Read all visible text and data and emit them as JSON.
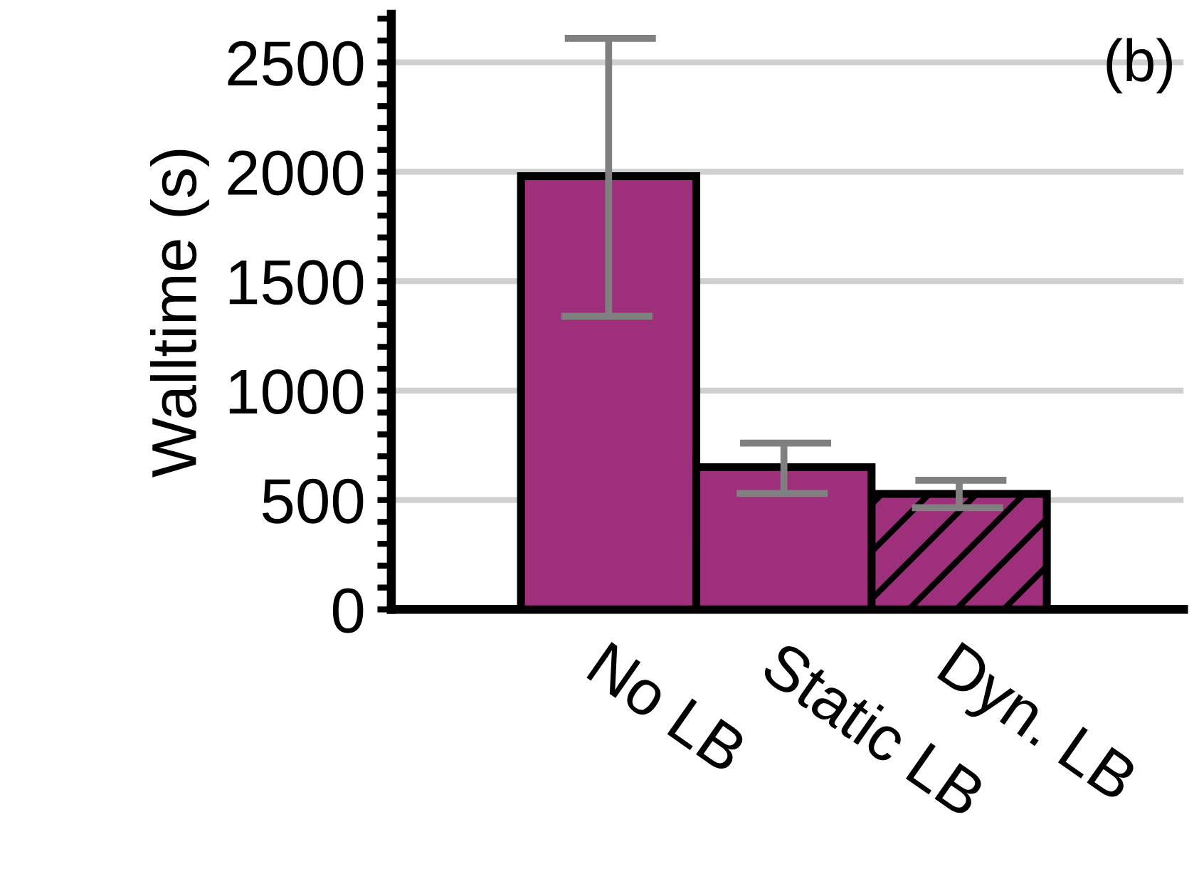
{
  "chart_data": {
    "type": "bar",
    "ylabel": "Walltime (s)",
    "categories": [
      "No LB",
      "Static LB",
      "Dyn. LB"
    ],
    "values": [
      1980,
      650,
      528
    ],
    "color": "#9e2f7a",
    "errors": [
      [
        1340,
        2610
      ],
      [
        530,
        760
      ],
      [
        465,
        590
      ]
    ],
    "ylim": [
      0,
      2720
    ],
    "yticks": [
      0,
      500,
      1000,
      1500,
      2000,
      2500
    ],
    "grid": "y",
    "annotations": [
      "(b)"
    ]
  }
}
